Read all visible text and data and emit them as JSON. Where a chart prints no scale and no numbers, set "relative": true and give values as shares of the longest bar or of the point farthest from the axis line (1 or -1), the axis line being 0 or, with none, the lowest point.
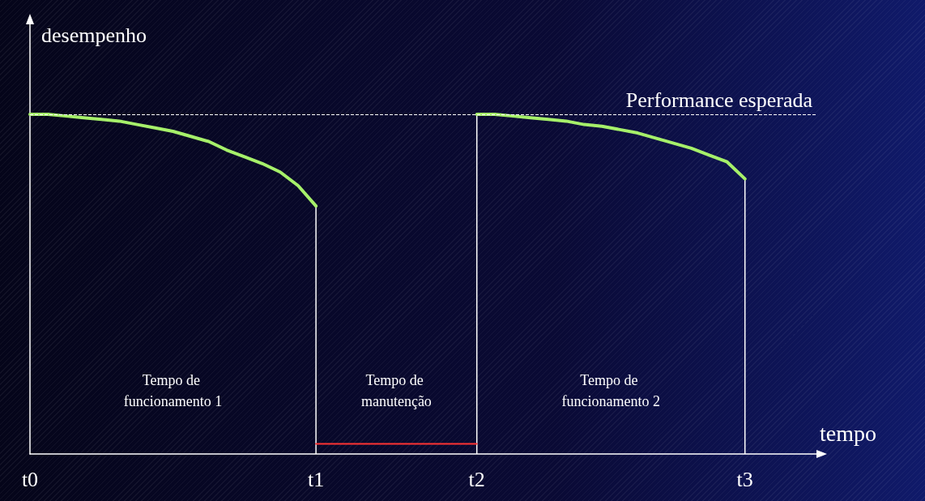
{
  "chart_data": {
    "type": "line",
    "relative": true,
    "xlabel": "tempo",
    "ylabel": "desempenho",
    "categories": [
      "t0",
      null,
      null,
      null,
      null,
      null,
      null,
      null,
      null,
      null,
      null,
      null,
      null,
      null,
      null,
      null,
      "t1",
      null,
      null,
      null,
      null,
      null,
      null,
      null,
      null,
      "t2",
      null,
      null,
      null,
      null,
      null,
      null,
      null,
      null,
      null,
      null,
      null,
      null,
      null,
      null,
      "t3",
      null,
      null,
      null,
      null
    ],
    "series": [
      {
        "color": "#a6f06a",
        "values": [
          1,
          1,
          0.995,
          0.99,
          0.985,
          0.98,
          0.97,
          0.96,
          0.95,
          0.935,
          0.92,
          0.895,
          0.875,
          0.855,
          0.83,
          0.79,
          0.73,
          null,
          null,
          null,
          null,
          null,
          null,
          null,
          null,
          null,
          null,
          null,
          null,
          null,
          null,
          null,
          null,
          null,
          null,
          null,
          null,
          null,
          null,
          null,
          null,
          null,
          null,
          null,
          null
        ]
      },
      {
        "color": "#a6f06a",
        "values": [
          null,
          null,
          null,
          null,
          null,
          null,
          null,
          null,
          null,
          null,
          null,
          null,
          null,
          null,
          null,
          null,
          null,
          null,
          null,
          null,
          null,
          null,
          null,
          null,
          null,
          1,
          1,
          0.995,
          0.99,
          0.985,
          0.98,
          0.97,
          0.965,
          0.955,
          0.945,
          0.93,
          0.915,
          0.9,
          0.88,
          0.86,
          0.81,
          null,
          null,
          null,
          null
        ]
      },
      {
        "type": "bar",
        "color": "#ffffff",
        "values": [
          null,
          null,
          null,
          null,
          null,
          null,
          null,
          null,
          null,
          null,
          null,
          null,
          null,
          null,
          null,
          null,
          0.73,
          null,
          null,
          null,
          null,
          null,
          null,
          null,
          null,
          1,
          null,
          null,
          null,
          null,
          null,
          null,
          null,
          null,
          null,
          null,
          null,
          null,
          null,
          null,
          0.81,
          null,
          null,
          null,
          null
        ]
      },
      {
        "color": "#ff3333",
        "values": [
          null,
          null,
          null,
          null,
          null,
          null,
          null,
          null,
          null,
          null,
          null,
          null,
          null,
          null,
          null,
          null,
          0.03,
          0.03,
          0.03,
          0.03,
          0.03,
          0.03,
          0.03,
          0.03,
          0.03,
          0.03,
          null,
          null,
          null,
          null,
          null,
          null,
          null,
          null,
          null,
          null,
          null,
          null,
          null,
          null,
          null,
          null,
          null,
          null,
          null
        ]
      }
    ],
    "ref_lines": [
      {
        "axis": "y",
        "value": 1,
        "label": "Performance esperada",
        "color": "#ffffff",
        "line_style": "dashed"
      }
    ],
    "annotations": [
      "Tempo de funcionamento 1",
      "Tempo de manutenção",
      "Tempo de funcionamento 2"
    ],
    "marker": "none",
    "line_style": "solid"
  }
}
